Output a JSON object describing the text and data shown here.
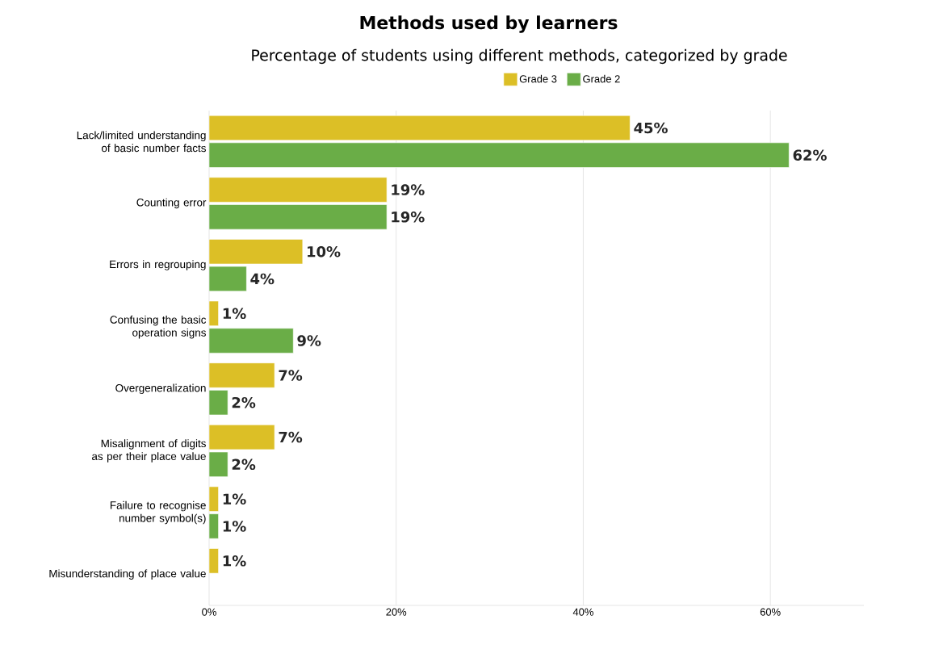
{
  "chart_data": {
    "type": "bar",
    "orientation": "horizontal",
    "title": "Methods used by learners",
    "subtitle": "Percentage of students using different methods, categorized by grade",
    "categories": [
      "Lack/limited understanding of basic number facts",
      "Counting error",
      "Errors in regrouping",
      "Confusing the basic operation signs",
      "Overgeneralization",
      "Misalignment of digits as per their place value",
      "Failure to recognise number symbol(s)",
      "Misunderstanding of place value"
    ],
    "series": [
      {
        "name": "Grade 3",
        "color": "#dcbf26",
        "values": [
          45,
          19,
          10,
          1,
          7,
          7,
          1,
          1
        ],
        "value_labels": [
          "45%",
          "19%",
          "10%",
          "1%",
          "7%",
          "7%",
          "1%",
          "1%"
        ]
      },
      {
        "name": "Grade 2",
        "color": "#6aad47",
        "values": [
          62,
          19,
          4,
          9,
          2,
          2,
          1,
          null
        ],
        "value_labels": [
          "62%",
          "19%",
          "4%",
          "9%",
          "2%",
          "2%",
          "1%",
          null
        ]
      }
    ],
    "xlim": [
      0,
      70
    ],
    "xticks": [
      {
        "value": 0,
        "label": "0%"
      },
      {
        "value": 20,
        "label": "20%"
      },
      {
        "value": 40,
        "label": "40%"
      },
      {
        "value": 60,
        "label": "60%"
      }
    ],
    "grid": "x",
    "legend": "top"
  }
}
